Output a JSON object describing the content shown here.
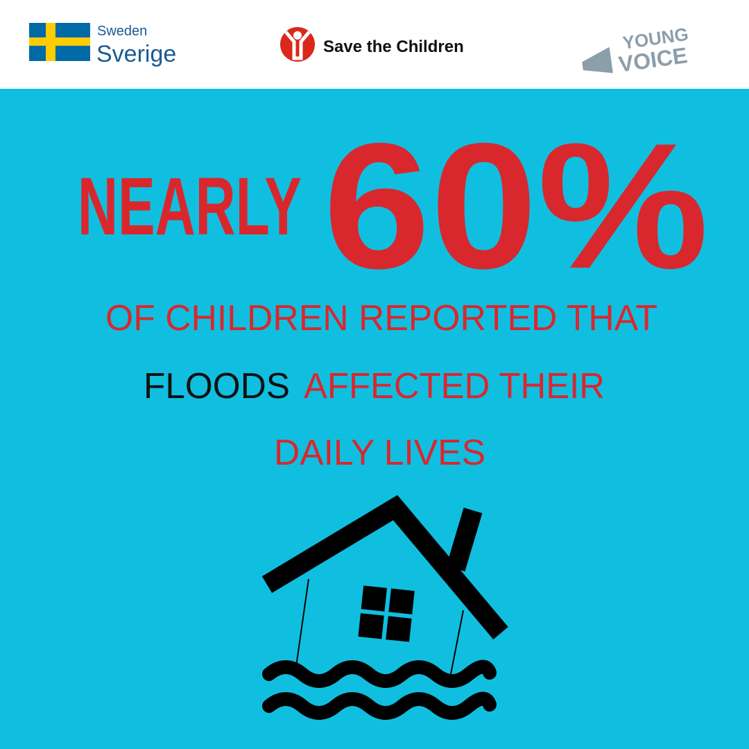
{
  "header": {
    "sweden": "Sweden",
    "sverige": "Sverige",
    "organization": "Save the Children",
    "young": "YOUNG",
    "voice": "VOICE"
  },
  "headline": {
    "nearly": "NEARLY",
    "percent": "60%"
  },
  "body": {
    "line1": "OF CHILDREN REPORTED THAT",
    "floods": "FLOODS",
    "line2": "AFFECTED THEIR",
    "line3": "DAILY LIVES"
  }
}
